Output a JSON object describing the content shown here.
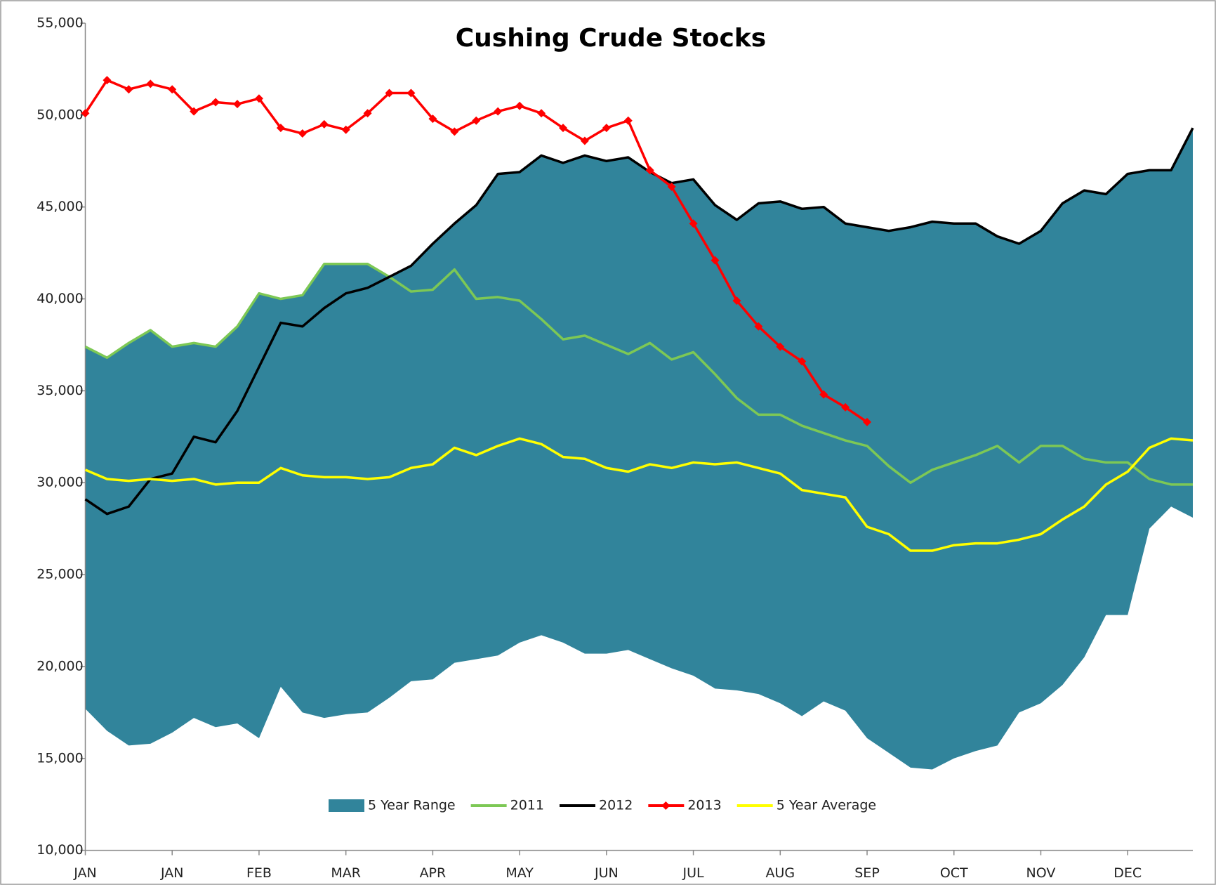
{
  "chart_data": {
    "type": "line",
    "title": "Cushing Crude Stocks",
    "categories": [
      "JAN",
      null,
      null,
      null,
      "JAN",
      null,
      null,
      null,
      "FEB",
      null,
      null,
      null,
      "MAR",
      null,
      null,
      null,
      "APR",
      null,
      null,
      null,
      "MAY",
      null,
      null,
      null,
      "JUN",
      null,
      null,
      null,
      "JUL",
      null,
      null,
      null,
      "AUG",
      null,
      null,
      null,
      "SEP",
      null,
      null,
      null,
      "OCT",
      null,
      null,
      null,
      "NOV",
      null,
      null,
      null,
      "DEC",
      null,
      null,
      null
    ],
    "ylim": [
      10000,
      55000
    ],
    "yticks": [
      {
        "value": 10000,
        "label": "10,000"
      },
      {
        "value": 15000,
        "label": "15,000"
      },
      {
        "value": 20000,
        "label": "20,000"
      },
      {
        "value": 25000,
        "label": "25,000"
      },
      {
        "value": 30000,
        "label": "30,000"
      },
      {
        "value": 35000,
        "label": "35,000"
      },
      {
        "value": 40000,
        "label": "40,000"
      },
      {
        "value": 45000,
        "label": "45,000"
      },
      {
        "value": 50000,
        "label": "50,000"
      },
      {
        "value": 55000,
        "label": "55,000"
      }
    ],
    "grid": false,
    "range": {
      "name": "5 Year Range",
      "color": "#31849b",
      "low": [
        17700,
        16500,
        15700,
        15800,
        16400,
        17200,
        16700,
        16900,
        16100,
        18900,
        17500,
        17200,
        17400,
        17500,
        18300,
        19200,
        19300,
        20200,
        20400,
        20600,
        21300,
        21700,
        21300,
        20700,
        20700,
        20900,
        20400,
        19900,
        19500,
        18800,
        18700,
        18500,
        18000,
        17300,
        18100,
        17600,
        16100,
        15300,
        14500,
        14400,
        15000,
        15400,
        15700,
        17500,
        18000,
        19000,
        20500,
        22800,
        22800,
        27500,
        28700,
        28100
      ],
      "high": [
        37400,
        36800,
        37600,
        38300,
        37400,
        37600,
        37400,
        38500,
        40300,
        40000,
        40200,
        41900,
        41900,
        41900,
        41200,
        41800,
        43000,
        44100,
        45100,
        46800,
        46900,
        47800,
        47400,
        47800,
        47500,
        47700,
        46900,
        46300,
        46500,
        45100,
        44300,
        45200,
        45300,
        44900,
        45000,
        44100,
        43900,
        43700,
        43900,
        44200,
        44100,
        44100,
        43400,
        43000,
        43700,
        45200,
        45900,
        45700,
        46800,
        47000,
        47000,
        49300
      ]
    },
    "series": [
      {
        "name": "2011",
        "color": "#7dc855",
        "values": [
          37400,
          36800,
          37600,
          38300,
          37400,
          37600,
          37400,
          38500,
          40300,
          40000,
          40200,
          41900,
          41900,
          41900,
          41200,
          40400,
          40500,
          41600,
          40000,
          40100,
          39900,
          38900,
          37800,
          38000,
          37500,
          37000,
          37600,
          36700,
          37100,
          35900,
          34600,
          33700,
          33700,
          33100,
          32700,
          32300,
          32000,
          30900,
          30000,
          30700,
          31100,
          31500,
          32000,
          31100,
          32000,
          32000,
          31300,
          31100,
          31100,
          30200,
          29900,
          29900
        ]
      },
      {
        "name": "2012",
        "color": "#000000",
        "values": [
          29100,
          28300,
          28700,
          30200,
          30500,
          32500,
          32200,
          33900,
          36300,
          38700,
          38500,
          39500,
          40300,
          40600,
          41200,
          41800,
          43000,
          44100,
          45100,
          46800,
          46900,
          47800,
          47400,
          47800,
          47500,
          47700,
          46900,
          46300,
          46500,
          45100,
          44300,
          45200,
          45300,
          44900,
          45000,
          44100,
          43900,
          43700,
          43900,
          44200,
          44100,
          44100,
          43400,
          43000,
          43700,
          45200,
          45900,
          45700,
          46800,
          47000,
          47000,
          49300
        ]
      },
      {
        "name": "2013",
        "color": "#ff0000",
        "marker": "diamond",
        "values": [
          50100,
          51900,
          51400,
          51700,
          51400,
          50200,
          50700,
          50600,
          50900,
          49300,
          49000,
          49500,
          49200,
          50100,
          51200,
          51200,
          49800,
          49100,
          49700,
          50200,
          50500,
          50100,
          49300,
          48600,
          49300,
          49700,
          47000,
          46100,
          44100,
          42100,
          39900,
          38500,
          37400,
          36600,
          34800,
          34100,
          33300,
          null,
          null,
          null,
          null,
          null,
          null,
          null,
          null,
          null,
          null,
          null,
          null,
          null,
          null,
          null
        ]
      },
      {
        "name": "5 Year Average",
        "color": "#ffff00",
        "values": [
          30700,
          30200,
          30100,
          30200,
          30100,
          30200,
          29900,
          30000,
          30000,
          30800,
          30400,
          30300,
          30300,
          30200,
          30300,
          30800,
          31000,
          31900,
          31500,
          32000,
          32400,
          32100,
          31400,
          31300,
          30800,
          30600,
          31000,
          30800,
          31100,
          31000,
          31100,
          30800,
          30500,
          29600,
          29400,
          29200,
          27600,
          27200,
          26300,
          26300,
          26600,
          26700,
          26700,
          26900,
          27200,
          28000,
          28700,
          29900,
          30600,
          31900,
          32400,
          32300
        ]
      }
    ]
  }
}
